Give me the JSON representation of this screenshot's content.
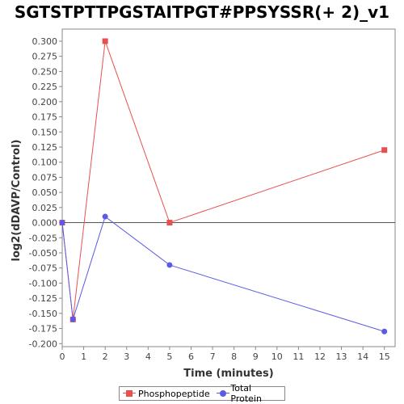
{
  "chart_data": {
    "type": "line",
    "title": "SGTSTPTTPGSTAITPGT#PPSYSSR(+ 2)_v1",
    "xlabel": "Time (minutes)",
    "ylabel": "log2(dDAVP/Control)",
    "xlim": [
      0,
      15.5
    ],
    "ylim": [
      -0.205,
      0.32
    ],
    "x_ticks": [
      0,
      1,
      2,
      3,
      4,
      5,
      6,
      7,
      8,
      9,
      10,
      11,
      12,
      13,
      14,
      15
    ],
    "y_ticks": [
      -0.2,
      -0.175,
      -0.15,
      -0.125,
      -0.1,
      -0.075,
      -0.05,
      -0.025,
      0.0,
      0.025,
      0.05,
      0.075,
      0.1,
      0.125,
      0.15,
      0.175,
      0.2,
      0.225,
      0.25,
      0.275,
      0.3
    ],
    "y_tick_labels": [
      "-0.200",
      "-0.175",
      "-0.150",
      "-0.125",
      "-0.100",
      "-0.075",
      "-0.050",
      "-0.025",
      "0.000",
      "0.025",
      "0.050",
      "0.075",
      "0.100",
      "0.125",
      "0.150",
      "0.175",
      "0.200",
      "0.225",
      "0.250",
      "0.275",
      "0.300"
    ],
    "zero_line": true,
    "grid": false,
    "legend_position": "bottom",
    "series": [
      {
        "name": "Phosphopeptide",
        "color": "#e8504f",
        "marker": "square",
        "x": [
          0,
          0.5,
          2,
          5,
          15
        ],
        "y": [
          0.0,
          -0.16,
          0.3,
          0.0,
          0.12
        ]
      },
      {
        "name": "Total Protein",
        "color": "#5a5ae8",
        "marker": "circle",
        "x": [
          0,
          0.5,
          2,
          5,
          15
        ],
        "y": [
          0.0,
          -0.16,
          0.01,
          -0.07,
          -0.18
        ]
      }
    ]
  }
}
